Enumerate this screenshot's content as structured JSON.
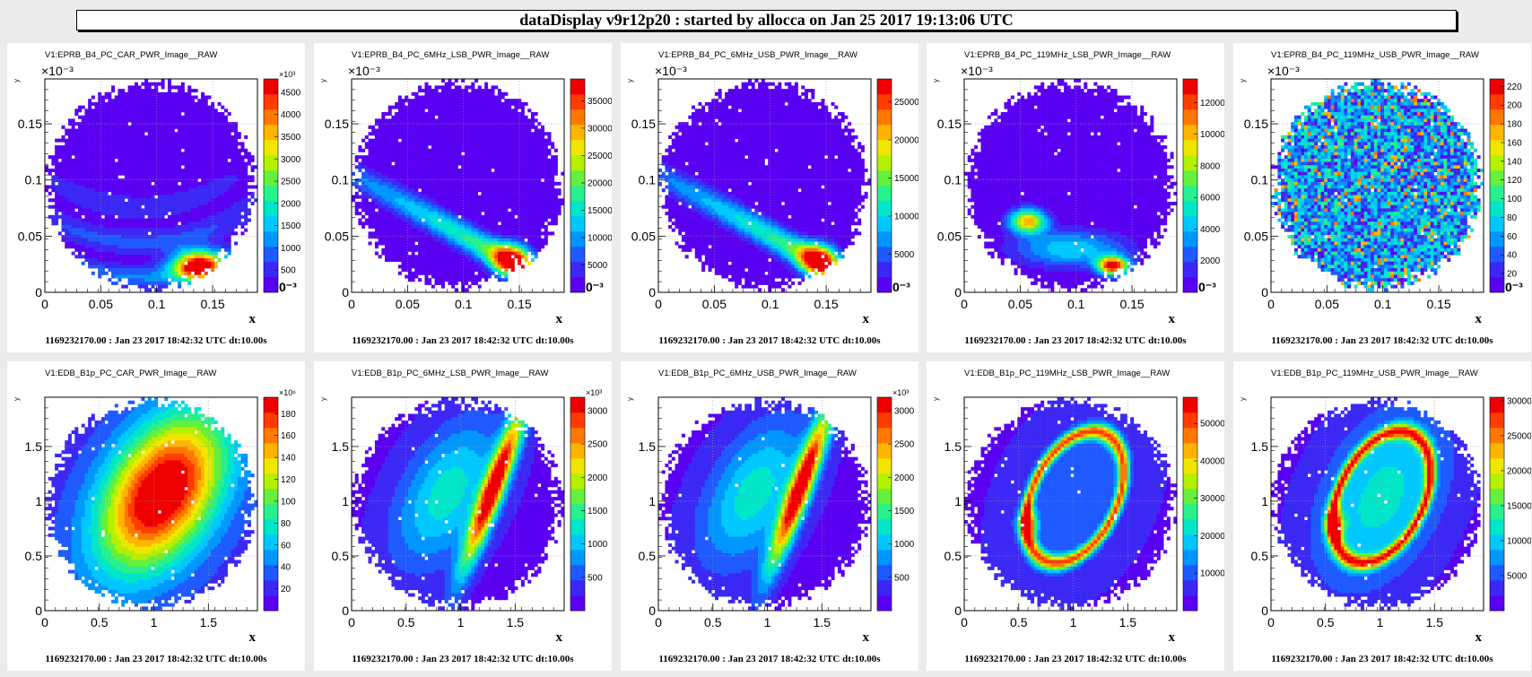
{
  "header": {
    "title": "dataDisplay v9r12p20 : started by allocca on Jan 25 2017 19:13:06 UTC"
  },
  "colors": {
    "background": "#ebebeb",
    "panel": "#ffffff",
    "low": "#5a00f2",
    "palette": [
      "#5a00f2",
      "#3c28f5",
      "#1e5aff",
      "#0096ff",
      "#00c8ff",
      "#00e6c8",
      "#28f08c",
      "#64f03c",
      "#b4f000",
      "#f0e600",
      "#ffb400",
      "#ff7800",
      "#ff3c00",
      "#ee0000"
    ]
  },
  "chart_data": [
    {
      "type": "heatmap",
      "title": "V1:EPRB_B4_PC_CAR_PWR_Image__RAW",
      "xlabel": "x",
      "ylabel": "y",
      "xlim": [
        0,
        0.19
      ],
      "ylim": [
        0,
        0.19
      ],
      "axis_multiplier": "×10⁻³",
      "x_ticks": [
        "0",
        "0.05",
        "0.1",
        "0.15"
      ],
      "y_ticks": [
        "0",
        "0.05",
        "0.1",
        "0.15"
      ],
      "colorbar": {
        "multiplier": "×10³",
        "ticks": [
          "500",
          "1000",
          "1500",
          "2000",
          "2500",
          "3000",
          "3500",
          "4000",
          "4500"
        ],
        "max": 4800,
        "bottom_label": "0⁻³"
      },
      "pattern": "rings",
      "footer": "1169232170.00 : Jan 23 2017 18:42:32 UTC dt:10.00s"
    },
    {
      "type": "heatmap",
      "title": "V1:EPRB_B4_PC_6MHz_LSB_PWR_Image__RAW",
      "xlabel": "x",
      "ylabel": "y",
      "xlim": [
        0,
        0.19
      ],
      "ylim": [
        0,
        0.19
      ],
      "axis_multiplier": "×10⁻³",
      "x_ticks": [
        "0",
        "0.05",
        "0.1",
        "0.15"
      ],
      "y_ticks": [
        "0",
        "0.05",
        "0.1",
        "0.15"
      ],
      "colorbar": {
        "multiplier": "",
        "ticks": [
          "5000",
          "10000",
          "15000",
          "20000",
          "25000",
          "30000",
          "35000"
        ],
        "max": 39000,
        "bottom_label": "0⁻³"
      },
      "pattern": "band",
      "footer": "1169232170.00 : Jan 23 2017 18:42:32 UTC dt:10.00s"
    },
    {
      "type": "heatmap",
      "title": "V1:EPRB_B4_PC_6MHz_USB_PWR_Image__RAW",
      "xlabel": "x",
      "ylabel": "y",
      "xlim": [
        0,
        0.19
      ],
      "ylim": [
        0,
        0.19
      ],
      "axis_multiplier": "×10⁻³",
      "x_ticks": [
        "0",
        "0.05",
        "0.1",
        "0.15"
      ],
      "y_ticks": [
        "0",
        "0.05",
        "0.1",
        "0.15"
      ],
      "colorbar": {
        "multiplier": "",
        "ticks": [
          "5000",
          "10000",
          "15000",
          "20000",
          "25000"
        ],
        "max": 28000,
        "bottom_label": "0⁻³"
      },
      "pattern": "band",
      "footer": "1169232170.00 : Jan 23 2017 18:42:32 UTC dt:10.00s"
    },
    {
      "type": "heatmap",
      "title": "V1:EPRB_B4_PC_119MHz_LSB_PWR_Image__RAW",
      "xlabel": "x",
      "ylabel": "y",
      "xlim": [
        0,
        0.19
      ],
      "ylim": [
        0,
        0.19
      ],
      "axis_multiplier": "×10⁻³",
      "x_ticks": [
        "0",
        "0.05",
        "0.1",
        "0.15"
      ],
      "y_ticks": [
        "0",
        "0.05",
        "0.1",
        "0.15"
      ],
      "colorbar": {
        "multiplier": "",
        "ticks": [
          "2000",
          "4000",
          "6000",
          "8000",
          "10000",
          "12000"
        ],
        "max": 13500,
        "bottom_label": "0⁻³"
      },
      "pattern": "blobs",
      "footer": "1169232170.00 : Jan 23 2017 18:42:32 UTC dt:10.00s"
    },
    {
      "type": "heatmap",
      "title": "V1:EPRB_B4_PC_119MHz_USB_PWR_Image__RAW",
      "xlabel": "x",
      "ylabel": "y",
      "xlim": [
        0,
        0.19
      ],
      "ylim": [
        0,
        0.19
      ],
      "axis_multiplier": "×10⁻³",
      "x_ticks": [
        "0",
        "0.05",
        "0.1",
        "0.15"
      ],
      "y_ticks": [
        "0",
        "0.05",
        "0.1",
        "0.15"
      ],
      "colorbar": {
        "multiplier": "",
        "ticks": [
          "20",
          "40",
          "60",
          "80",
          "100",
          "120",
          "140",
          "160",
          "180",
          "200",
          "220"
        ],
        "max": 228,
        "bottom_label": "0⁻³"
      },
      "pattern": "noise",
      "footer": "1169232170.00 : Jan 23 2017 18:42:32 UTC dt:10.00s"
    },
    {
      "type": "heatmap",
      "title": "V1:EDB_B1p_PC_CAR_PWR_Image__RAW",
      "xlabel": "x",
      "ylabel": "y",
      "xlim": [
        0,
        1.95
      ],
      "ylim": [
        0,
        1.95
      ],
      "axis_multiplier": "",
      "x_ticks": [
        "0",
        "0.5",
        "1",
        "1.5"
      ],
      "y_ticks": [
        "0",
        "0.5",
        "1",
        "1.5"
      ],
      "colorbar": {
        "multiplier": "×10⁶",
        "ticks": [
          "20",
          "40",
          "60",
          "80",
          "100",
          "120",
          "140",
          "160",
          "180"
        ],
        "max": 195,
        "bottom_label": ""
      },
      "pattern": "ellipse",
      "footer": "1169232170.00 : Jan 23 2017 18:42:32 UTC dt:10.00s"
    },
    {
      "type": "heatmap",
      "title": "V1:EDB_B1p_PC_6MHz_LSB_PWR_Image__RAW",
      "xlabel": "x",
      "ylabel": "y",
      "xlim": [
        0,
        1.95
      ],
      "ylim": [
        0,
        1.95
      ],
      "axis_multiplier": "",
      "x_ticks": [
        "0",
        "0.5",
        "1",
        "1.5"
      ],
      "y_ticks": [
        "0",
        "0.5",
        "1",
        "1.5"
      ],
      "colorbar": {
        "multiplier": "×10³",
        "ticks": [
          "500",
          "1000",
          "1500",
          "2000",
          "2500",
          "3000"
        ],
        "max": 3200,
        "bottom_label": ""
      },
      "pattern": "crescent",
      "footer": "1169232170.00 : Jan 23 2017 18:42:32 UTC dt:10.00s"
    },
    {
      "type": "heatmap",
      "title": "V1:EDB_B1p_PC_6MHz_USB_PWR_Image__RAW",
      "xlabel": "x",
      "ylabel": "y",
      "xlim": [
        0,
        1.95
      ],
      "ylim": [
        0,
        1.95
      ],
      "axis_multiplier": "",
      "x_ticks": [
        "0",
        "0.5",
        "1",
        "1.5"
      ],
      "y_ticks": [
        "0",
        "0.5",
        "1",
        "1.5"
      ],
      "colorbar": {
        "multiplier": "×10³",
        "ticks": [
          "500",
          "1000",
          "1500",
          "2000",
          "2500",
          "3000"
        ],
        "max": 3200,
        "bottom_label": ""
      },
      "pattern": "crescent",
      "footer": "1169232170.00 : Jan 23 2017 18:42:32 UTC dt:10.00s"
    },
    {
      "type": "heatmap",
      "title": "V1:EDB_B1p_PC_119MHz_LSB_PWR_Image__RAW",
      "xlabel": "x",
      "ylabel": "y",
      "xlim": [
        0,
        1.95
      ],
      "ylim": [
        0,
        1.95
      ],
      "axis_multiplier": "",
      "x_ticks": [
        "0",
        "0.5",
        "1",
        "1.5"
      ],
      "y_ticks": [
        "0",
        "0.5",
        "1",
        "1.5"
      ],
      "colorbar": {
        "multiplier": "",
        "ticks": [
          "10000",
          "20000",
          "30000",
          "40000",
          "50000"
        ],
        "max": 57000,
        "bottom_label": ""
      },
      "pattern": "ring",
      "footer": "1169232170.00 : Jan 23 2017 18:42:32 UTC dt:10.00s"
    },
    {
      "type": "heatmap",
      "title": "V1:EDB_B1p_PC_119MHz_USB_PWR_Image__RAW",
      "xlabel": "x",
      "ylabel": "y",
      "xlim": [
        0,
        1.95
      ],
      "ylim": [
        0,
        1.95
      ],
      "axis_multiplier": "",
      "x_ticks": [
        "0",
        "0.5",
        "1",
        "1.5"
      ],
      "y_ticks": [
        "0",
        "0.5",
        "1",
        "1.5"
      ],
      "colorbar": {
        "multiplier": "",
        "ticks": [
          "5000",
          "10000",
          "15000",
          "20000",
          "25000",
          "30000"
        ],
        "max": 30500,
        "bottom_label": ""
      },
      "pattern": "ringfill",
      "footer": "1169232170.00 : Jan 23 2017 18:42:32 UTC dt:10.00s"
    }
  ]
}
